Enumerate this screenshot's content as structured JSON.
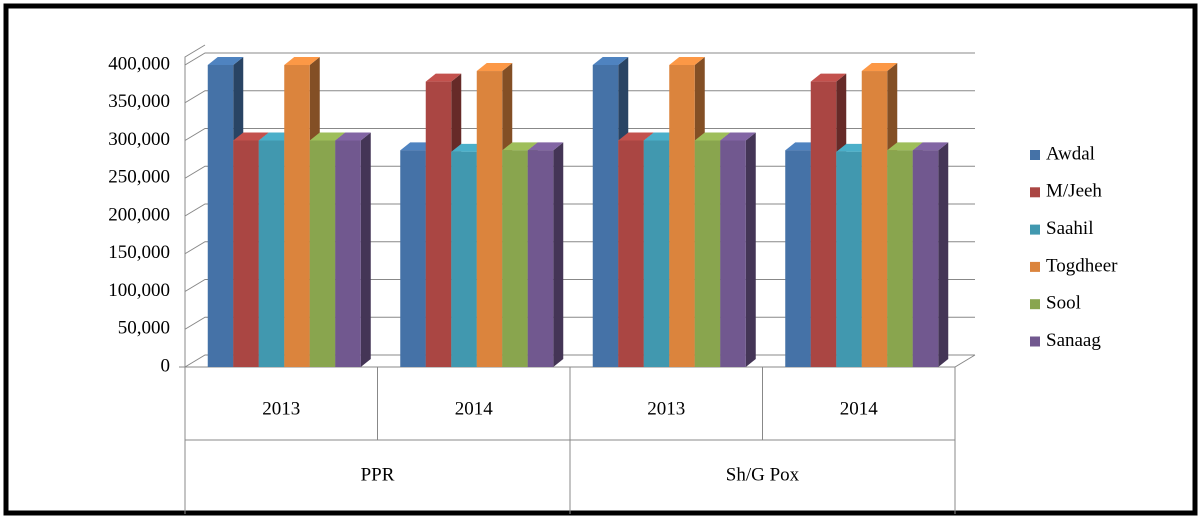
{
  "chart_data": {
    "type": "bar3d",
    "categories": [
      "2013",
      "2014",
      "2013",
      "2014"
    ],
    "category_groups": [
      "PPR",
      "Sh/G Pox"
    ],
    "series": [
      {
        "name": "Awdal",
        "color": "#4572a7",
        "values": [
          400000,
          287000,
          400000,
          287000
        ]
      },
      {
        "name": "M/Jeeh",
        "color": "#aa4643",
        "values": [
          300000,
          378000,
          300000,
          378000
        ]
      },
      {
        "name": "Saahil",
        "color": "#4198af",
        "values": [
          300000,
          285000,
          300000,
          285000
        ]
      },
      {
        "name": "Togdheer",
        "color": "#db843d",
        "values": [
          400000,
          392000,
          400000,
          392000
        ]
      },
      {
        "name": "Sool",
        "color": "#89a54e",
        "values": [
          300000,
          287000,
          300000,
          287000
        ]
      },
      {
        "name": "Sanaag",
        "color": "#71588f",
        "values": [
          300000,
          287000,
          300000,
          287000
        ]
      }
    ],
    "ylim": [
      0,
      400000
    ],
    "yticks": [
      0,
      {
        "value": 50000,
        "label": "50,000"
      },
      {
        "value": 100000,
        "label": "100,000"
      },
      {
        "value": 150000,
        "label": "150,000"
      },
      {
        "value": 200000,
        "label": "200,000"
      },
      {
        "value": 250000,
        "label": "250,000"
      },
      {
        "value": 300000,
        "label": "300,000"
      },
      {
        "value": 350000,
        "label": "350,000"
      },
      {
        "value": 400000,
        "label": "400,000"
      }
    ],
    "grid": true,
    "legend": "right"
  }
}
